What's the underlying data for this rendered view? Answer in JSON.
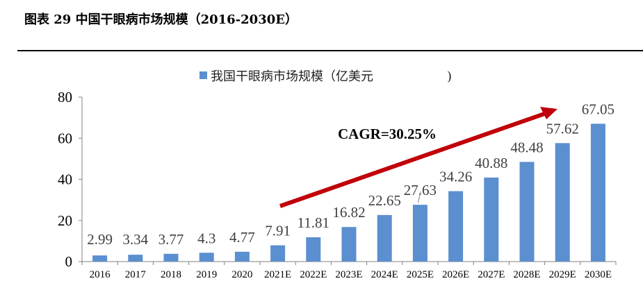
{
  "figure_title": "图表 29  中国干眼病市场规模（2016-2030E）",
  "colors": {
    "bar": "#5b8fcf",
    "arrow": "#c0000a",
    "axis": "#808080"
  },
  "chart_data": {
    "type": "bar",
    "title": "",
    "xlabel": "",
    "ylabel": "",
    "ylim": [
      0,
      80
    ],
    "yticks": [
      0,
      20,
      40,
      60,
      80
    ],
    "grid": false,
    "legend_position": "top-center",
    "categories": [
      "2016",
      "2017",
      "2018",
      "2019",
      "2020",
      "2021E",
      "2022E",
      "2023E",
      "2024E",
      "2025E",
      "2026E",
      "2027E",
      "2028E",
      "2029E",
      "2030E"
    ],
    "series": [
      {
        "name": "我国干眼病市场规模（亿美元",
        "values": [
          2.99,
          3.34,
          3.77,
          4.3,
          4.77,
          7.91,
          11.81,
          16.82,
          22.65,
          27.63,
          34.26,
          40.88,
          48.48,
          57.62,
          67.05
        ],
        "labels": [
          "2.99",
          "3.34",
          "3.77",
          "4.3",
          "4.77",
          "7.91",
          "11.81",
          "16.82",
          "22.65",
          "27.63",
          "34.26",
          "40.88",
          "48.48",
          "57.62",
          "67.05"
        ]
      }
    ],
    "annotations": [
      {
        "text": "CAGR=30.25%",
        "type": "arrow"
      }
    ]
  }
}
